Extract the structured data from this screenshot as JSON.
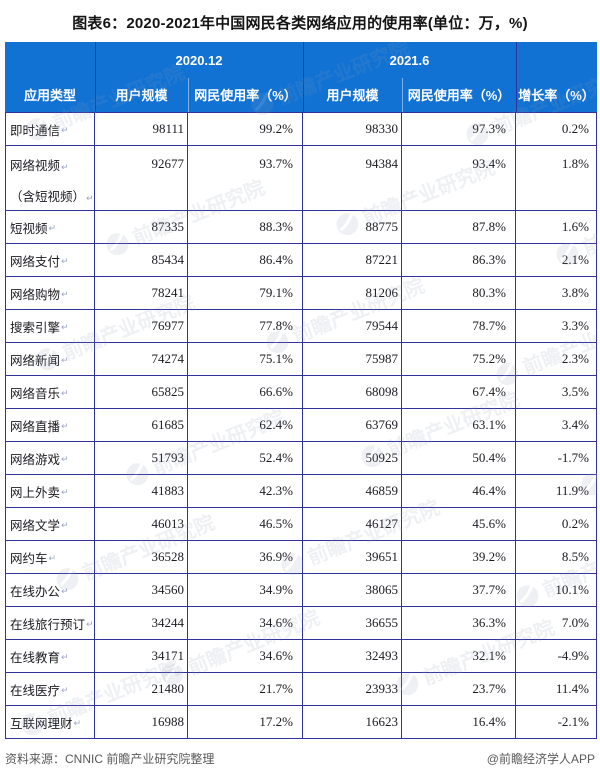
{
  "chart_data": {
    "type": "table",
    "title": "图表6：2020-2021年中国网民各类网络应用的使用率(单位：万，%)",
    "column_groups": [
      "2020.12",
      "2021.6"
    ],
    "columns": [
      "应用类型",
      "用户规模",
      "网民使用率（%）",
      "用户规模",
      "网民使用率（%）",
      "增长率（%）"
    ],
    "rows": [
      {
        "app": "即时通信",
        "u2020": "98111",
        "r2020": "99.2%",
        "u2021": "98330",
        "r2021": "97.3%",
        "growth": "0.2%"
      },
      {
        "app": "网络视频",
        "app2": "（含短视频）",
        "u2020": "92677",
        "r2020": "93.7%",
        "u2021": "94384",
        "r2021": "93.4%",
        "growth": "1.8%"
      },
      {
        "app": "短视频",
        "u2020": "87335",
        "r2020": "88.3%",
        "u2021": "88775",
        "r2021": "87.8%",
        "growth": "1.6%"
      },
      {
        "app": "网络支付",
        "u2020": "85434",
        "r2020": "86.4%",
        "u2021": "87221",
        "r2021": "86.3%",
        "growth": "2.1%"
      },
      {
        "app": "网络购物",
        "u2020": "78241",
        "r2020": "79.1%",
        "u2021": "81206",
        "r2021": "80.3%",
        "growth": "3.8%"
      },
      {
        "app": "搜索引擎",
        "u2020": "76977",
        "r2020": "77.8%",
        "u2021": "79544",
        "r2021": "78.7%",
        "growth": "3.3%"
      },
      {
        "app": "网络新闻",
        "u2020": "74274",
        "r2020": "75.1%",
        "u2021": "75987",
        "r2021": "75.2%",
        "growth": "2.3%"
      },
      {
        "app": "网络音乐",
        "u2020": "65825",
        "r2020": "66.6%",
        "u2021": "68098",
        "r2021": "67.4%",
        "growth": "3.5%"
      },
      {
        "app": "网络直播",
        "u2020": "61685",
        "r2020": "62.4%",
        "u2021": "63769",
        "r2021": "63.1%",
        "growth": "3.4%"
      },
      {
        "app": "网络游戏",
        "u2020": "51793",
        "r2020": "52.4%",
        "u2021": "50925",
        "r2021": "50.4%",
        "growth": "-1.7%"
      },
      {
        "app": "网上外卖",
        "u2020": "41883",
        "r2020": "42.3%",
        "u2021": "46859",
        "r2021": "46.4%",
        "growth": "11.9%"
      },
      {
        "app": "网络文学",
        "u2020": "46013",
        "r2020": "46.5%",
        "u2021": "46127",
        "r2021": "45.6%",
        "growth": "0.2%"
      },
      {
        "app": "网约车",
        "u2020": "36528",
        "r2020": "36.9%",
        "u2021": "39651",
        "r2021": "39.2%",
        "growth": "8.5%"
      },
      {
        "app": "在线办公",
        "u2020": "34560",
        "r2020": "34.9%",
        "u2021": "38065",
        "r2021": "37.7%",
        "growth": "10.1%"
      },
      {
        "app": "在线旅行预订",
        "u2020": "34244",
        "r2020": "34.6%",
        "u2021": "36655",
        "r2021": "36.3%",
        "growth": "7.0%"
      },
      {
        "app": "在线教育",
        "u2020": "34171",
        "r2020": "34.6%",
        "u2021": "32493",
        "r2021": "32.1%",
        "growth": "-4.9%"
      },
      {
        "app": "在线医疗",
        "u2020": "21480",
        "r2020": "21.7%",
        "u2021": "23933",
        "r2021": "23.7%",
        "growth": "11.4%"
      },
      {
        "app": "互联网理财",
        "u2020": "16988",
        "r2020": "17.2%",
        "u2021": "16623",
        "r2021": "16.4%",
        "growth": "-2.1%"
      }
    ]
  },
  "footer": {
    "source": "资料来源：CNNIC 前瞻产业研究院整理",
    "credit": "@前瞻经济学人APP"
  },
  "watermark_text": "前瞻产业研究院",
  "marks": {
    "eol": "↵"
  },
  "colors": {
    "header_bg": "#1272d4",
    "grid": "#32329e",
    "body_text": "#1b1b22",
    "footer_text": "#595959"
  }
}
